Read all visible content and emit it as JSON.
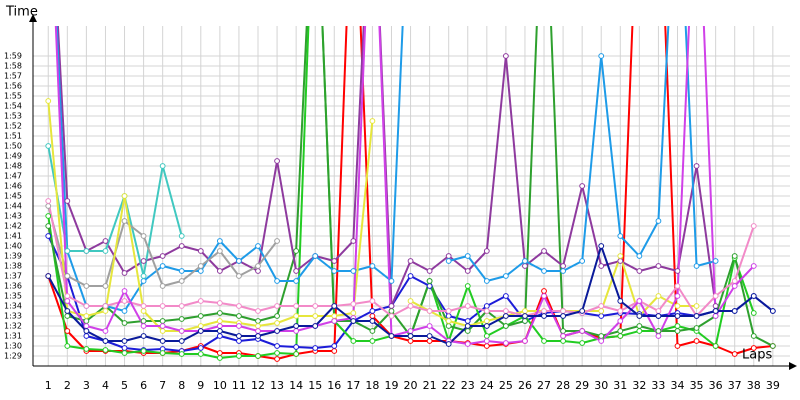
{
  "chart_data": {
    "type": "line",
    "ylabel": "Time",
    "xlabel": "Laps",
    "x": [
      1,
      2,
      3,
      4,
      5,
      6,
      7,
      8,
      9,
      10,
      11,
      12,
      13,
      14,
      15,
      16,
      17,
      18,
      19,
      20,
      21,
      22,
      23,
      24,
      25,
      26,
      27,
      28,
      29,
      30,
      31,
      32,
      33,
      34,
      35,
      36,
      37,
      38,
      39
    ],
    "xlim": [
      0.2,
      39.9
    ],
    "xticks": [
      1,
      2,
      3,
      4,
      5,
      6,
      7,
      8,
      9,
      10,
      11,
      12,
      13,
      14,
      15,
      16,
      17,
      18,
      19,
      20,
      21,
      22,
      23,
      24,
      25,
      26,
      27,
      28,
      29,
      30,
      31,
      32,
      33,
      34,
      35,
      36,
      37,
      38,
      39
    ],
    "ylim": [
      88,
      122
    ],
    "yticks": [
      {
        "value": 89,
        "label": "1:29"
      },
      {
        "value": 90,
        "label": "1:30"
      },
      {
        "value": 91,
        "label": "1:31"
      },
      {
        "value": 92,
        "label": "1:32"
      },
      {
        "value": 93,
        "label": "1:33"
      },
      {
        "value": 94,
        "label": "1:34"
      },
      {
        "value": 95,
        "label": "1:35"
      },
      {
        "value": 96,
        "label": "1:36"
      },
      {
        "value": 97,
        "label": "1:37"
      },
      {
        "value": 98,
        "label": "1:38"
      },
      {
        "value": 99,
        "label": "1:39"
      },
      {
        "value": 100,
        "label": "1:40"
      },
      {
        "value": 101,
        "label": "1:41"
      },
      {
        "value": 102,
        "label": "1:42"
      },
      {
        "value": 103,
        "label": "1:43"
      },
      {
        "value": 104,
        "label": "1:44"
      },
      {
        "value": 105,
        "label": "1:45"
      },
      {
        "value": 106,
        "label": "1:46"
      },
      {
        "value": 107,
        "label": "1:47"
      },
      {
        "value": 108,
        "label": "1:48"
      },
      {
        "value": 109,
        "label": "1:49"
      },
      {
        "value": 110,
        "label": "1:50"
      },
      {
        "value": 111,
        "label": "1:51"
      },
      {
        "value": 112,
        "label": "1:52"
      },
      {
        "value": 113,
        "label": "1:53"
      },
      {
        "value": 114,
        "label": "1:54"
      },
      {
        "value": 115,
        "label": "1:55"
      },
      {
        "value": 116,
        "label": "1:56"
      },
      {
        "value": 117,
        "label": "1:57"
      },
      {
        "value": 118,
        "label": "1:58"
      },
      {
        "value": 119,
        "label": "1:59"
      }
    ],
    "grid": true,
    "series": [
      {
        "color": "#ff0000",
        "values": [
          97,
          91.5,
          89.5,
          89.5,
          89.5,
          89.3,
          89.3,
          89.5,
          90,
          89.3,
          89.3,
          89,
          88.7,
          89.2,
          89.5,
          89.5,
          140,
          93,
          91,
          90.5,
          90.5,
          90.5,
          90.3,
          90,
          90.2,
          90.5,
          95.5,
          91,
          91.5,
          90.8,
          91,
          140,
          140,
          90,
          90.5,
          90,
          89.2,
          89.8,
          90
        ]
      },
      {
        "color": "#1c1cd8",
        "values": [
          101,
          97,
          91,
          90.5,
          89.8,
          89.6,
          89.7,
          89.5,
          89.8,
          91,
          90.5,
          90.7,
          90,
          89.9,
          89.8,
          90,
          92.5,
          93.5,
          94,
          97,
          96,
          93,
          92.5,
          94,
          95,
          92.5,
          93.3,
          93.5,
          93.3,
          93,
          93.3,
          93.2,
          93,
          93.3,
          93,
          93.5,
          93.5,
          95,
          93.5
        ]
      },
      {
        "color": "#22cc22",
        "values": [
          103,
          90,
          89.7,
          89.6,
          89.3,
          89.5,
          89.3,
          89.2,
          89.2,
          88.8,
          89,
          89,
          89.3,
          89.2,
          140,
          92.5,
          90.5,
          90.5,
          91,
          91,
          96.5,
          90.5,
          96,
          91,
          92,
          93,
          90.5,
          90.5,
          90.3,
          90.8,
          91,
          91.5,
          91.5,
          92,
          91.5,
          90,
          98.8,
          93.3,
          null
        ]
      },
      {
        "color": "#2ea02e",
        "values": [
          102,
          93,
          92.5,
          94,
          92.3,
          92.5,
          92.5,
          92.7,
          93,
          93.3,
          93,
          92.5,
          93,
          99.5,
          140,
          92.5,
          92.5,
          91.5,
          93.5,
          91,
          96.5,
          92,
          91.5,
          93.5,
          92,
          92.5,
          140,
          91.5,
          91.5,
          91,
          91.5,
          92,
          91.5,
          91.5,
          91.8,
          93,
          99,
          91,
          90
        ]
      },
      {
        "color": "#8e3a9e",
        "values": [
          140,
          104.5,
          99.5,
          100.5,
          97.3,
          98.5,
          99,
          100,
          99.5,
          97.5,
          98.5,
          97.5,
          108.5,
          97.5,
          99,
          98.5,
          100.5,
          140,
          94,
          98.5,
          97.5,
          99,
          97.5,
          99.5,
          119,
          98,
          99.5,
          98,
          106,
          98,
          98.5,
          97.5,
          98,
          97.5,
          108,
          94,
          null,
          null,
          null
        ]
      },
      {
        "color": "#1e9be8",
        "values": [
          140,
          99.5,
          94,
          94,
          93.5,
          96.5,
          98,
          97.5,
          97.5,
          100.5,
          98.5,
          100,
          96.5,
          96.5,
          99,
          97.5,
          97.5,
          98,
          96.5,
          140,
          null,
          98.5,
          99,
          96.5,
          97,
          98.5,
          97.5,
          97.5,
          98.5,
          119,
          101,
          99,
          102.5,
          140,
          98,
          98.5,
          null,
          null,
          null
        ]
      },
      {
        "color": "#40c8c0",
        "values": [
          110,
          99.5,
          99.5,
          99.5,
          105,
          97,
          108,
          101,
          null,
          null,
          null,
          null,
          null,
          null,
          null,
          null,
          null,
          null,
          null,
          null,
          null,
          null,
          null,
          null,
          null,
          null,
          null,
          null,
          null,
          null,
          null,
          null,
          null,
          null,
          null,
          null,
          null,
          null,
          null
        ]
      },
      {
        "color": "#a0a0a0",
        "values": [
          104,
          97,
          96,
          96,
          102.5,
          101,
          96,
          96.5,
          98,
          99.5,
          97,
          98,
          100.5,
          null,
          null,
          null,
          null,
          null,
          null,
          null,
          null,
          null,
          null,
          null,
          null,
          null,
          null,
          null,
          null,
          null,
          null,
          null,
          null,
          null,
          null,
          null,
          null,
          null,
          null
        ]
      },
      {
        "color": "#e6e63c",
        "values": [
          114.5,
          93.5,
          93,
          93.5,
          105,
          93.5,
          91.5,
          91.5,
          92,
          92.5,
          92.3,
          92,
          92.3,
          93,
          93,
          93,
          93.3,
          112.5,
          null,
          94.5,
          93.5,
          92.5,
          92,
          92.5,
          93,
          93.5,
          93.5,
          93.5,
          93.5,
          93.5,
          99,
          93,
          95,
          94,
          94,
          null,
          null,
          null,
          null
        ]
      },
      {
        "color": "#f28ac8",
        "values": [
          104.5,
          95,
          94,
          94,
          94.5,
          94,
          94,
          94,
          94.5,
          94.3,
          94,
          93.5,
          94,
          94,
          94,
          94,
          94.2,
          94.5,
          93,
          94,
          93.5,
          93.5,
          94,
          93.5,
          93.5,
          93,
          93.5,
          93.5,
          93.3,
          94,
          93.5,
          94.5,
          93.5,
          96,
          93,
          95,
          96.5,
          102,
          null
        ]
      },
      {
        "color": "#d040e8",
        "values": [
          140,
          94.5,
          92,
          91.5,
          95.5,
          92,
          92,
          91.5,
          91.5,
          92,
          92,
          91.5,
          91.5,
          91.5,
          92,
          92.5,
          92.8,
          140,
          91,
          91.5,
          92,
          90.5,
          90.2,
          90.5,
          90.3,
          90.5,
          95,
          91,
          91.5,
          90.5,
          92.5,
          94.5,
          91,
          95,
          140,
          93,
          96,
          98,
          null
        ]
      },
      {
        "color": "#0a1a9a",
        "values": [
          97,
          93.5,
          91.5,
          90.5,
          90.5,
          91,
          90.5,
          90.5,
          91.5,
          91.5,
          91,
          91,
          91.5,
          92,
          92,
          94,
          92.5,
          92.5,
          91,
          91,
          91,
          90.2,
          92,
          92,
          93,
          93,
          93,
          93,
          93.5,
          100,
          94.5,
          93,
          93,
          93,
          93,
          93.5,
          93.5,
          95,
          93.5
        ]
      }
    ]
  }
}
